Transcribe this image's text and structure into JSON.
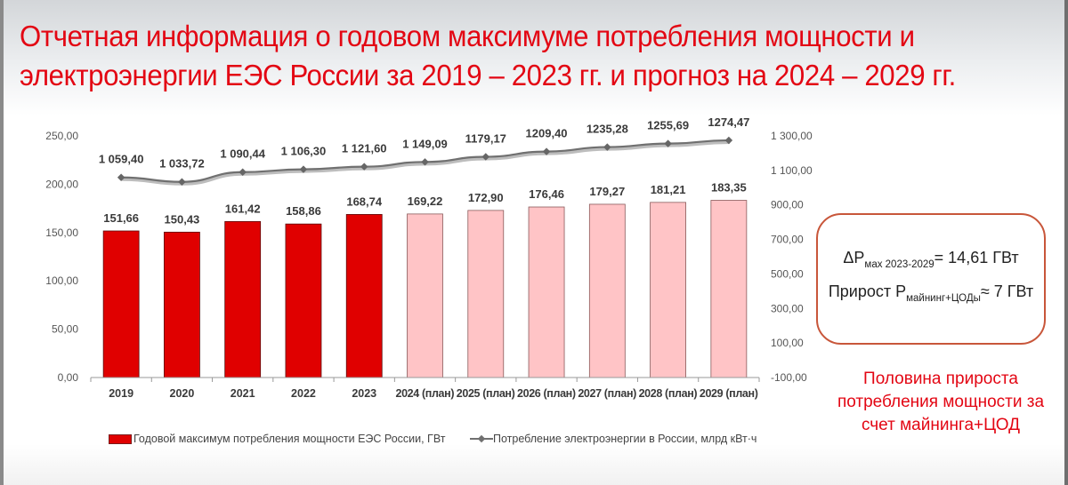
{
  "slide": {
    "title_line1": "Отчетная информация о годовом максимуме потребления мощности и",
    "title_line2": "электроэнергии ЕЭС России за  2019 – 2023 гг. и прогноз на 2024 – 2029 гг.",
    "callout": {
      "line1_main": "ΔP",
      "line1_sub": "мах 2023-2029",
      "line1_value": "= 14,61 ГВт",
      "line2_main": "Прирост P",
      "line2_sub": "майнинг+ЦОДы",
      "line2_value": "≈ 7 ГВт"
    },
    "note": [
      "Половина прироста",
      "потребления мощности за",
      "счет майнинга+ЦОД"
    ]
  },
  "colors": {
    "title": "#e30613",
    "bar_actual": "#e00000",
    "bar_plan": "#ffc4c6",
    "line": "#707070",
    "callout_border": "#c8563a"
  },
  "chart_data": {
    "type": "bar",
    "title": "Отчетная информация о годовом максимуме потребления мощности и электроэнергии ЕЭС России за 2019 – 2023 гг. и прогноз на 2024 – 2029 гг.",
    "categories": [
      "2019",
      "2020",
      "2021",
      "2022",
      "2023",
      "2024 (план)",
      "2025 (план)",
      "2026 (план)",
      "2027 (план)",
      "2028 (план)",
      "2029 (план)"
    ],
    "series": [
      {
        "name": "Годовой максимум потребления мощности ЕЭС России, ГВт",
        "type": "bar",
        "axis": "left",
        "values": [
          151.66,
          150.43,
          161.42,
          158.86,
          168.74,
          169.22,
          172.9,
          176.46,
          179.27,
          181.21,
          183.35
        ],
        "labels": [
          "151,66",
          "150,43",
          "161,42",
          "158,86",
          "168,74",
          "169,22",
          "172,90",
          "176,46",
          "179,27",
          "181,21",
          "183,35"
        ]
      },
      {
        "name": "Потребление электроэнергии в России, млрд кВт·ч",
        "type": "line",
        "axis": "right",
        "values": [
          1059.4,
          1033.72,
          1090.44,
          1106.3,
          1121.6,
          1149.09,
          1179.17,
          1209.4,
          1235.28,
          1255.69,
          1274.47
        ],
        "labels": [
          "1 059,40",
          "1 033,72",
          "1 090,44",
          "1 106,30",
          "1 121,60",
          "1 149,09",
          "1179,17",
          "1209,40",
          "1235,28",
          "1255,69",
          "1274,47"
        ]
      }
    ],
    "left_axis": {
      "ylim": [
        0,
        250
      ],
      "ticks": [
        "250,00",
        "200,00",
        "150,00",
        "100,00",
        "50,00",
        "0,00"
      ]
    },
    "right_axis": {
      "ylim": [
        -100,
        1300
      ],
      "ticks": [
        "1 300,00",
        "1 100,00",
        "900,00",
        "700,00",
        "500,00",
        "300,00",
        "100,00",
        "-100,00"
      ]
    },
    "xlabel": "",
    "ylabel": "",
    "grid": false,
    "legend_position": "bottom",
    "legend": [
      "Годовой максимум потребления мощности ЕЭС России, ГВт",
      "Потребление электроэнергии в России, млрд кВт·ч"
    ]
  }
}
